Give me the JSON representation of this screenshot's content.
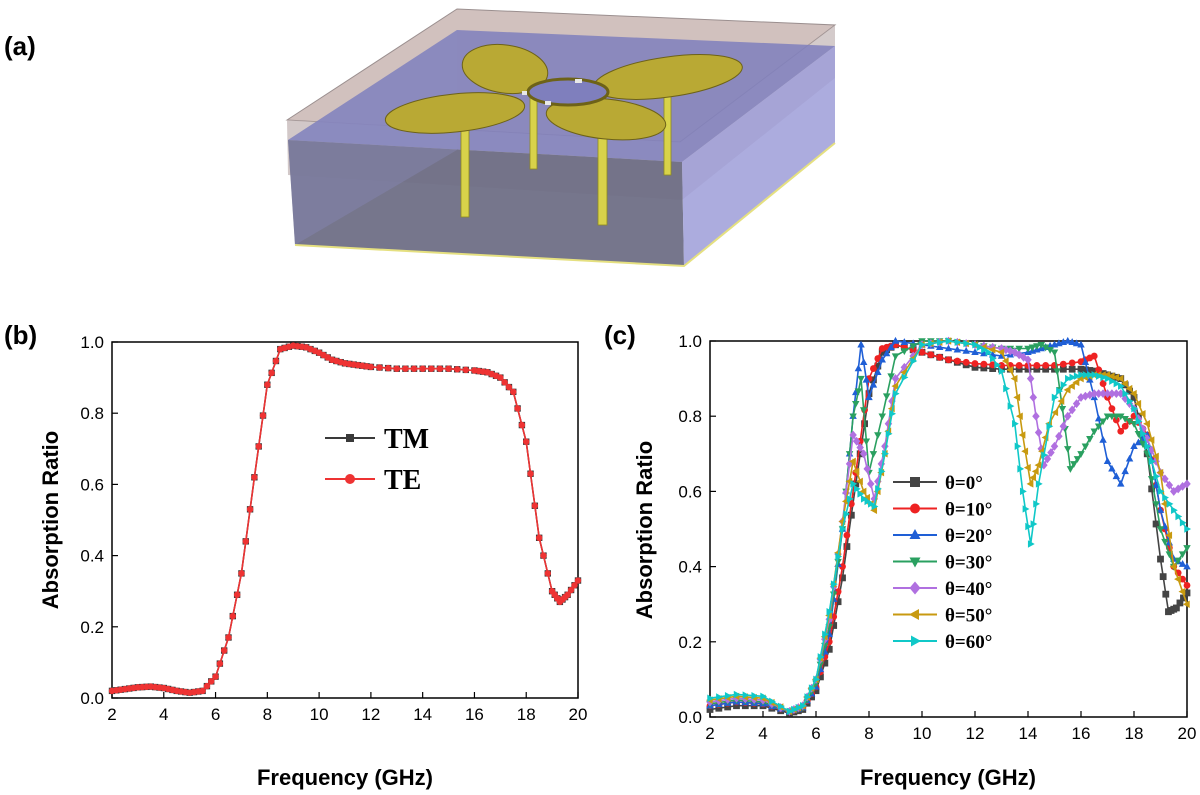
{
  "panels": {
    "a": {
      "label": "(a)"
    },
    "b": {
      "label": "(b)"
    },
    "c": {
      "label": "(c)"
    }
  },
  "chart_data": [
    {
      "id": "b",
      "type": "line",
      "xlabel": "Frequency (GHz)",
      "ylabel": "Absorption Ratio",
      "xlim": [
        2,
        20
      ],
      "ylim": [
        0.0,
        1.0
      ],
      "xticks": [
        "2",
        "4",
        "6",
        "8",
        "10",
        "12",
        "14",
        "16",
        "18",
        "20"
      ],
      "yticks": [
        "0.0",
        "0.2",
        "0.4",
        "0.6",
        "0.8",
        "1.0"
      ],
      "legend_position": "center",
      "series": [
        {
          "name": "TM",
          "color": "#3a3a3a",
          "marker": "square",
          "x": [
            2,
            2.5,
            3,
            3.5,
            4,
            4.5,
            5,
            5.5,
            6,
            6.5,
            7,
            7.5,
            8,
            8.5,
            9,
            9.5,
            10,
            10.5,
            11,
            11.5,
            12,
            13,
            14,
            15,
            16,
            16.5,
            17,
            17.5,
            18,
            18.5,
            19,
            19.3,
            19.6,
            20
          ],
          "y": [
            0.02,
            0.025,
            0.03,
            0.032,
            0.028,
            0.02,
            0.015,
            0.02,
            0.06,
            0.17,
            0.35,
            0.62,
            0.88,
            0.98,
            0.99,
            0.985,
            0.97,
            0.95,
            0.94,
            0.935,
            0.93,
            0.925,
            0.925,
            0.925,
            0.92,
            0.915,
            0.9,
            0.86,
            0.72,
            0.45,
            0.3,
            0.27,
            0.29,
            0.33
          ]
        },
        {
          "name": "TE",
          "color": "#ee3333",
          "marker": "circle",
          "x": [
            2,
            2.5,
            3,
            3.5,
            4,
            4.5,
            5,
            5.5,
            6,
            6.5,
            7,
            7.5,
            8,
            8.5,
            9,
            9.5,
            10,
            10.5,
            11,
            11.5,
            12,
            13,
            14,
            15,
            16,
            16.5,
            17,
            17.5,
            18,
            18.5,
            19,
            19.3,
            19.6,
            20
          ],
          "y": [
            0.02,
            0.025,
            0.03,
            0.032,
            0.028,
            0.02,
            0.015,
            0.02,
            0.06,
            0.17,
            0.35,
            0.62,
            0.88,
            0.98,
            0.99,
            0.985,
            0.97,
            0.95,
            0.94,
            0.935,
            0.93,
            0.925,
            0.925,
            0.925,
            0.92,
            0.915,
            0.9,
            0.86,
            0.72,
            0.45,
            0.3,
            0.27,
            0.29,
            0.33
          ]
        }
      ]
    },
    {
      "id": "c",
      "type": "line",
      "xlabel": "Frequency (GHz)",
      "ylabel": "Absorption Ratio",
      "xlim": [
        2,
        20
      ],
      "ylim": [
        0.0,
        1.0
      ],
      "xticks": [
        "2",
        "4",
        "6",
        "8",
        "10",
        "12",
        "14",
        "16",
        "18",
        "20"
      ],
      "yticks": [
        "0.0",
        "0.2",
        "0.4",
        "0.6",
        "0.8",
        "1.0"
      ],
      "legend_position": "left",
      "series": [
        {
          "name": "θ=0°",
          "color": "#444444",
          "marker": "square",
          "x": [
            2,
            3,
            4,
            5,
            5.5,
            6,
            6.5,
            7,
            7.5,
            8,
            8.5,
            9,
            10,
            11,
            12,
            13,
            14,
            15,
            16,
            16.5,
            17,
            17.5,
            18,
            18.5,
            19,
            19.3,
            19.6,
            20
          ],
          "y": [
            0.02,
            0.03,
            0.03,
            0.01,
            0.02,
            0.07,
            0.18,
            0.37,
            0.62,
            0.86,
            0.97,
            0.99,
            0.97,
            0.95,
            0.93,
            0.925,
            0.925,
            0.925,
            0.925,
            0.92,
            0.91,
            0.9,
            0.85,
            0.7,
            0.42,
            0.28,
            0.29,
            0.33
          ]
        },
        {
          "name": "θ=10°",
          "color": "#ee2222",
          "marker": "circle",
          "x": [
            2,
            3,
            4,
            5,
            5.5,
            6,
            6.5,
            7,
            7.5,
            8,
            8.5,
            9,
            10,
            11,
            12,
            13,
            14,
            15,
            16,
            16.5,
            17,
            17.5,
            18,
            18.5,
            19,
            19.5,
            20
          ],
          "y": [
            0.03,
            0.04,
            0.035,
            0.015,
            0.025,
            0.08,
            0.2,
            0.4,
            0.65,
            0.9,
            0.98,
            0.99,
            0.97,
            0.95,
            0.94,
            0.935,
            0.935,
            0.935,
            0.945,
            0.96,
            0.85,
            0.76,
            0.8,
            0.75,
            0.55,
            0.4,
            0.35
          ]
        },
        {
          "name": "θ=20°",
          "color": "#1f5fd6",
          "marker": "triangle-up",
          "x": [
            2,
            3,
            4,
            5,
            5.5,
            6,
            6.5,
            7,
            7.4,
            7.7,
            8,
            8.5,
            9,
            10,
            11,
            12,
            13,
            14,
            14.5,
            15,
            15.5,
            16,
            16.5,
            17,
            17.5,
            18,
            18.5,
            19,
            19.5,
            20
          ],
          "y": [
            0.03,
            0.04,
            0.035,
            0.015,
            0.025,
            0.08,
            0.22,
            0.5,
            0.8,
            0.99,
            0.85,
            0.95,
            1.0,
            0.99,
            0.98,
            0.97,
            0.96,
            0.97,
            0.98,
            0.99,
            1.0,
            0.99,
            0.85,
            0.68,
            0.62,
            0.72,
            0.75,
            0.55,
            0.42,
            0.4
          ]
        },
        {
          "name": "θ=30°",
          "color": "#2aa060",
          "marker": "triangle-down",
          "x": [
            2,
            3,
            4,
            5,
            5.5,
            6,
            6.5,
            7,
            7.4,
            7.7,
            8,
            8.5,
            9,
            10,
            11,
            12,
            13,
            14,
            14.5,
            15,
            15.3,
            15.6,
            16,
            16.5,
            17,
            17.5,
            18,
            18.5,
            19,
            19.5,
            20
          ],
          "y": [
            0.035,
            0.045,
            0.04,
            0.015,
            0.025,
            0.09,
            0.24,
            0.5,
            0.8,
            0.9,
            0.65,
            0.8,
            0.96,
            1.0,
            1.0,
            0.99,
            0.98,
            0.98,
            0.99,
            0.97,
            0.82,
            0.66,
            0.7,
            0.76,
            0.8,
            0.8,
            0.78,
            0.7,
            0.5,
            0.4,
            0.45
          ]
        },
        {
          "name": "θ=40°",
          "color": "#b070e0",
          "marker": "diamond",
          "x": [
            2,
            3,
            4,
            5,
            5.5,
            6,
            6.5,
            7,
            7.4,
            7.8,
            8.2,
            8.6,
            9,
            10,
            11,
            12,
            13,
            13.5,
            14,
            14.3,
            14.6,
            15,
            15.5,
            16,
            16.5,
            17,
            17.5,
            18,
            18.5,
            19,
            19.5,
            20
          ],
          "y": [
            0.04,
            0.05,
            0.045,
            0.015,
            0.03,
            0.1,
            0.26,
            0.52,
            0.75,
            0.7,
            0.58,
            0.72,
            0.9,
            0.99,
            1.0,
            0.99,
            0.98,
            0.97,
            0.95,
            0.8,
            0.67,
            0.72,
            0.8,
            0.85,
            0.86,
            0.86,
            0.86,
            0.82,
            0.74,
            0.65,
            0.6,
            0.62
          ]
        },
        {
          "name": "θ=50°",
          "color": "#c89a10",
          "marker": "triangle-left",
          "x": [
            2,
            3,
            4,
            5,
            5.5,
            6,
            6.5,
            7,
            7.4,
            7.8,
            8.2,
            8.6,
            9,
            10,
            11,
            12,
            13,
            13.5,
            13.8,
            14.1,
            14.4,
            14.8,
            15.5,
            16,
            16.5,
            17,
            17.5,
            18,
            18.5,
            19,
            19.5,
            20
          ],
          "y": [
            0.045,
            0.055,
            0.05,
            0.015,
            0.03,
            0.1,
            0.27,
            0.52,
            0.68,
            0.6,
            0.55,
            0.7,
            0.88,
            0.99,
            1.0,
            0.99,
            0.97,
            0.9,
            0.75,
            0.62,
            0.67,
            0.78,
            0.87,
            0.9,
            0.91,
            0.91,
            0.9,
            0.86,
            0.78,
            0.65,
            0.4,
            0.3
          ]
        },
        {
          "name": "θ=60°",
          "color": "#10c8c8",
          "marker": "triangle-right",
          "x": [
            2,
            3,
            4,
            5,
            5.5,
            6,
            6.5,
            7,
            7.4,
            7.8,
            8.2,
            8.6,
            9,
            10,
            11,
            12,
            12.5,
            13,
            13.5,
            13.8,
            14.1,
            14.4,
            15,
            15.5,
            16,
            16.5,
            17,
            17.5,
            18,
            18.5,
            19,
            19.5,
            20
          ],
          "y": [
            0.05,
            0.06,
            0.055,
            0.015,
            0.03,
            0.1,
            0.28,
            0.5,
            0.62,
            0.58,
            0.56,
            0.7,
            0.86,
            0.99,
            1.0,
            0.99,
            0.97,
            0.92,
            0.78,
            0.6,
            0.46,
            0.62,
            0.85,
            0.9,
            0.91,
            0.91,
            0.9,
            0.88,
            0.82,
            0.72,
            0.6,
            0.55,
            0.5
          ]
        }
      ]
    }
  ]
}
